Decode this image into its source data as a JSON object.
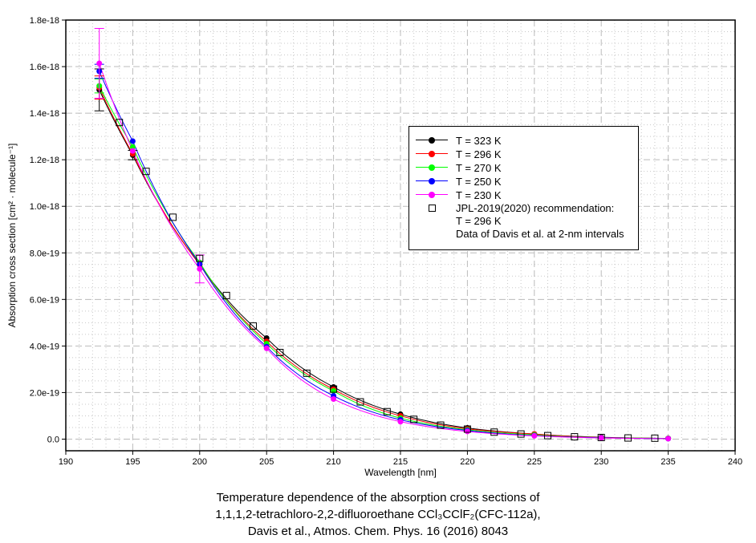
{
  "chart_data": {
    "type": "line",
    "xlabel": "Wavelength [nm]",
    "ylabel": "Absorption cross section [cm² · molecule⁻¹]",
    "xlim": [
      190,
      240
    ],
    "ylim": [
      -5e-20,
      1.8e-18
    ],
    "x_ticks": [
      "190",
      "195",
      "200",
      "205",
      "210",
      "215",
      "220",
      "225",
      "230",
      "235",
      "240"
    ],
    "y_ticks": [
      "0.0",
      "2.0e-19",
      "4.0e-19",
      "6.0e-19",
      "8.0e-19",
      "1.0e-18",
      "1.2e-18",
      "1.4e-18",
      "1.6e-18",
      "1.8e-18"
    ],
    "grid": true,
    "legend_position": "upper-right",
    "title_lines": [
      "Temperature dependence of the absorption cross sections of",
      "1,1,1,2-tetrachloro-2,2-difluoroethane CCl₃CClF₂(CFC-112a),",
      "Davis et al., Atmos. Chem. Phys. 16 (2016) 8043"
    ],
    "x": [
      192.5,
      195,
      200,
      205,
      210,
      215,
      220,
      225,
      230,
      235
    ],
    "series": [
      {
        "name": "T = 323 K",
        "color": "#000000",
        "values": [
          1.5e-18,
          1.22e-18,
          7.5e-19,
          4.34e-19,
          2.24e-19,
          1.07e-19,
          4.8e-20,
          2.2e-20,
          8e-21,
          3e-21
        ],
        "errors": [
          9e-20,
          2e-20,
          0,
          0,
          0,
          0,
          0,
          0,
          0,
          0
        ]
      },
      {
        "name": "T = 296 K",
        "color": "#ff0000",
        "values": [
          1.51e-18,
          1.225e-18,
          7.5e-19,
          4.2e-19,
          2.14e-19,
          1e-19,
          4.4e-20,
          2.2e-20,
          7e-21,
          3e-21
        ],
        "errors": [
          5e-20,
          0,
          0,
          0,
          0,
          0,
          0,
          0,
          0,
          0
        ]
      },
      {
        "name": "T = 270 K",
        "color": "#00ff00",
        "values": [
          1.517e-18,
          1.255e-18,
          7.59e-19,
          4.1e-19,
          2.07e-19,
          9e-20,
          4e-20,
          1.8e-20,
          6e-21,
          3e-21
        ],
        "errors": [
          3e-20,
          0,
          0,
          0,
          0,
          0,
          0,
          0,
          0,
          0
        ]
      },
      {
        "name": "T = 250 K",
        "color": "#0000ff",
        "values": [
          1.58e-18,
          1.28e-18,
          7.52e-19,
          3.97e-19,
          1.86e-19,
          8.3e-20,
          3.7e-20,
          1.5e-20,
          6e-21,
          2e-21
        ],
        "errors": [
          3e-20,
          0,
          0,
          0,
          0,
          0,
          0,
          0,
          0,
          0
        ]
      },
      {
        "name": "T = 230 K",
        "color": "#ff00ff",
        "values": [
          1.614e-18,
          1.238e-18,
          7.31e-19,
          3.9e-19,
          1.72e-19,
          7.5e-20,
          3.3e-20,
          1.4e-20,
          5e-21,
          2e-21
        ],
        "errors": [
          1.5e-19,
          0,
          6e-20,
          0,
          0,
          0,
          0,
          0,
          0,
          0
        ]
      }
    ],
    "reference": {
      "legend_lines": [
        "JPL-2019(2020) recommendation:",
        "T = 296 K",
        "Data of Davis et al. at 2-nm intervals"
      ],
      "x": [
        194,
        196,
        198,
        200,
        202,
        204,
        206,
        208,
        210,
        212,
        214,
        216,
        218,
        220,
        222,
        224,
        226,
        228,
        230,
        232,
        234
      ],
      "values": [
        1.36e-18,
        1.15e-18,
        9.53e-19,
        7.76e-19,
        6.17e-19,
        4.86e-19,
        3.72e-19,
        2.83e-19,
        2.15e-19,
        1.6e-19,
        1.18e-19,
        8.5e-20,
        6e-20,
        4.3e-20,
        3e-20,
        2.2e-20,
        1.5e-20,
        1e-20,
        7e-21,
        5e-21,
        4e-21
      ]
    }
  }
}
